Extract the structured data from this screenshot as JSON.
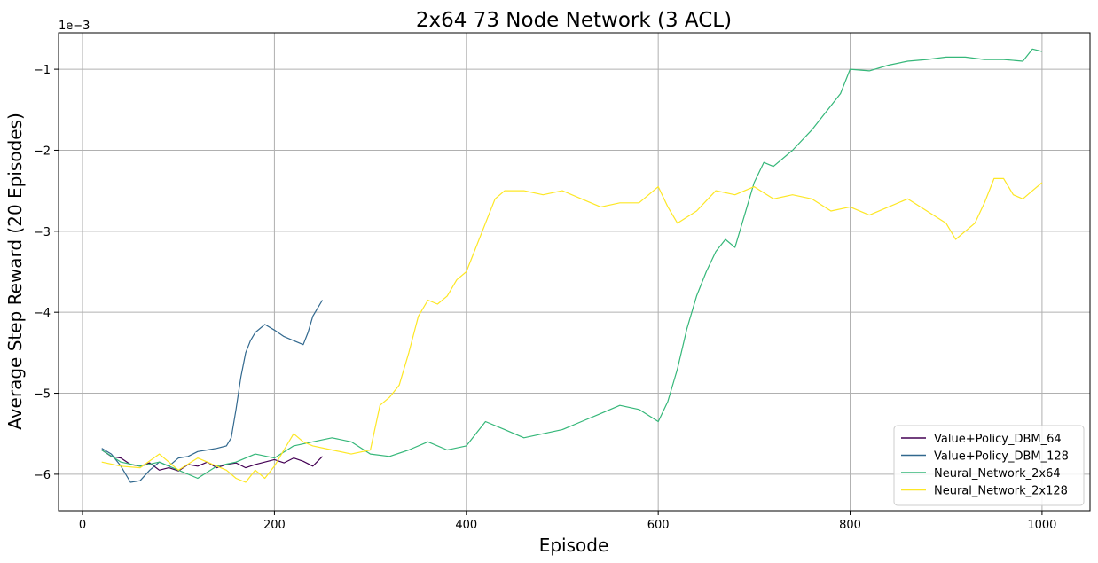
{
  "chart_data": {
    "type": "line",
    "title": "2x64 73 Node Network (3 ACL)",
    "xlabel": "Episode",
    "ylabel": "Average Step Reward (20 Episodes)",
    "y_scale_label": "1e−3",
    "xlim": [
      -25,
      1050
    ],
    "ylim": [
      -6.45,
      -0.55
    ],
    "xticks": [
      0,
      200,
      400,
      600,
      800,
      1000
    ],
    "yticks": [
      -6,
      -5,
      -4,
      -3,
      -2,
      -1
    ],
    "xtick_labels": [
      "0",
      "200",
      "400",
      "600",
      "800",
      "1000"
    ],
    "ytick_labels": [
      "−6",
      "−5",
      "−4",
      "−3",
      "−2",
      "−1"
    ],
    "grid": true,
    "legend_position": "lower-right",
    "series": [
      {
        "name": "Value+Policy_DBM_64",
        "color": "#440154",
        "points": [
          [
            20,
            -5.7
          ],
          [
            30,
            -5.78
          ],
          [
            40,
            -5.8
          ],
          [
            50,
            -5.88
          ],
          [
            60,
            -5.9
          ],
          [
            70,
            -5.86
          ],
          [
            80,
            -5.95
          ],
          [
            90,
            -5.92
          ],
          [
            100,
            -5.96
          ],
          [
            110,
            -5.88
          ],
          [
            120,
            -5.9
          ],
          [
            130,
            -5.85
          ],
          [
            140,
            -5.92
          ],
          [
            150,
            -5.88
          ],
          [
            160,
            -5.86
          ],
          [
            170,
            -5.92
          ],
          [
            180,
            -5.88
          ],
          [
            190,
            -5.85
          ],
          [
            200,
            -5.82
          ],
          [
            210,
            -5.86
          ],
          [
            220,
            -5.8
          ],
          [
            230,
            -5.84
          ],
          [
            240,
            -5.9
          ],
          [
            250,
            -5.78
          ]
        ]
      },
      {
        "name": "Value+Policy_DBM_128",
        "color": "#31688e",
        "points": [
          [
            20,
            -5.68
          ],
          [
            30,
            -5.75
          ],
          [
            40,
            -5.9
          ],
          [
            50,
            -6.1
          ],
          [
            60,
            -6.08
          ],
          [
            70,
            -5.95
          ],
          [
            80,
            -5.85
          ],
          [
            90,
            -5.9
          ],
          [
            100,
            -5.8
          ],
          [
            110,
            -5.78
          ],
          [
            120,
            -5.72
          ],
          [
            130,
            -5.7
          ],
          [
            140,
            -5.68
          ],
          [
            150,
            -5.65
          ],
          [
            155,
            -5.55
          ],
          [
            160,
            -5.2
          ],
          [
            165,
            -4.8
          ],
          [
            170,
            -4.5
          ],
          [
            175,
            -4.35
          ],
          [
            180,
            -4.25
          ],
          [
            190,
            -4.15
          ],
          [
            200,
            -4.22
          ],
          [
            210,
            -4.3
          ],
          [
            220,
            -4.35
          ],
          [
            230,
            -4.4
          ],
          [
            235,
            -4.25
          ],
          [
            240,
            -4.05
          ],
          [
            245,
            -3.95
          ],
          [
            250,
            -3.85
          ]
        ]
      },
      {
        "name": "Neural_Network_2x64",
        "color": "#35b779",
        "points": [
          [
            20,
            -5.7
          ],
          [
            40,
            -5.85
          ],
          [
            60,
            -5.9
          ],
          [
            80,
            -5.85
          ],
          [
            100,
            -5.95
          ],
          [
            120,
            -6.05
          ],
          [
            140,
            -5.9
          ],
          [
            160,
            -5.85
          ],
          [
            180,
            -5.75
          ],
          [
            200,
            -5.8
          ],
          [
            220,
            -5.65
          ],
          [
            240,
            -5.6
          ],
          [
            260,
            -5.55
          ],
          [
            280,
            -5.6
          ],
          [
            300,
            -5.75
          ],
          [
            320,
            -5.78
          ],
          [
            340,
            -5.7
          ],
          [
            360,
            -5.6
          ],
          [
            380,
            -5.7
          ],
          [
            400,
            -5.65
          ],
          [
            420,
            -5.35
          ],
          [
            440,
            -5.45
          ],
          [
            460,
            -5.55
          ],
          [
            480,
            -5.5
          ],
          [
            500,
            -5.45
          ],
          [
            520,
            -5.35
          ],
          [
            540,
            -5.25
          ],
          [
            560,
            -5.15
          ],
          [
            580,
            -5.2
          ],
          [
            600,
            -5.35
          ],
          [
            610,
            -5.1
          ],
          [
            620,
            -4.7
          ],
          [
            630,
            -4.2
          ],
          [
            640,
            -3.8
          ],
          [
            650,
            -3.5
          ],
          [
            660,
            -3.25
          ],
          [
            670,
            -3.1
          ],
          [
            680,
            -3.2
          ],
          [
            690,
            -2.8
          ],
          [
            700,
            -2.4
          ],
          [
            710,
            -2.15
          ],
          [
            720,
            -2.2
          ],
          [
            740,
            -2.0
          ],
          [
            760,
            -1.75
          ],
          [
            780,
            -1.45
          ],
          [
            790,
            -1.3
          ],
          [
            800,
            -1.0
          ],
          [
            820,
            -1.02
          ],
          [
            840,
            -0.95
          ],
          [
            860,
            -0.9
          ],
          [
            880,
            -0.88
          ],
          [
            900,
            -0.85
          ],
          [
            920,
            -0.85
          ],
          [
            940,
            -0.88
          ],
          [
            960,
            -0.88
          ],
          [
            980,
            -0.9
          ],
          [
            990,
            -0.75
          ],
          [
            1000,
            -0.78
          ]
        ]
      },
      {
        "name": "Neural_Network_2x128",
        "color": "#fde725",
        "points": [
          [
            20,
            -5.85
          ],
          [
            40,
            -5.9
          ],
          [
            60,
            -5.92
          ],
          [
            80,
            -5.75
          ],
          [
            100,
            -5.95
          ],
          [
            120,
            -5.8
          ],
          [
            140,
            -5.9
          ],
          [
            150,
            -5.95
          ],
          [
            160,
            -6.05
          ],
          [
            170,
            -6.1
          ],
          [
            180,
            -5.95
          ],
          [
            190,
            -6.05
          ],
          [
            200,
            -5.9
          ],
          [
            210,
            -5.7
          ],
          [
            220,
            -5.5
          ],
          [
            230,
            -5.6
          ],
          [
            240,
            -5.65
          ],
          [
            260,
            -5.7
          ],
          [
            280,
            -5.75
          ],
          [
            300,
            -5.7
          ],
          [
            310,
            -5.15
          ],
          [
            320,
            -5.05
          ],
          [
            330,
            -4.9
          ],
          [
            340,
            -4.5
          ],
          [
            350,
            -4.05
          ],
          [
            360,
            -3.85
          ],
          [
            370,
            -3.9
          ],
          [
            380,
            -3.8
          ],
          [
            390,
            -3.6
          ],
          [
            400,
            -3.5
          ],
          [
            410,
            -3.2
          ],
          [
            420,
            -2.9
          ],
          [
            430,
            -2.6
          ],
          [
            440,
            -2.5
          ],
          [
            460,
            -2.5
          ],
          [
            480,
            -2.55
          ],
          [
            500,
            -2.5
          ],
          [
            520,
            -2.6
          ],
          [
            540,
            -2.7
          ],
          [
            560,
            -2.65
          ],
          [
            580,
            -2.65
          ],
          [
            600,
            -2.45
          ],
          [
            610,
            -2.7
          ],
          [
            620,
            -2.9
          ],
          [
            640,
            -2.75
          ],
          [
            660,
            -2.5
          ],
          [
            680,
            -2.55
          ],
          [
            700,
            -2.45
          ],
          [
            720,
            -2.6
          ],
          [
            740,
            -2.55
          ],
          [
            760,
            -2.6
          ],
          [
            780,
            -2.75
          ],
          [
            800,
            -2.7
          ],
          [
            820,
            -2.8
          ],
          [
            840,
            -2.7
          ],
          [
            860,
            -2.6
          ],
          [
            880,
            -2.75
          ],
          [
            900,
            -2.9
          ],
          [
            910,
            -3.1
          ],
          [
            920,
            -3.0
          ],
          [
            930,
            -2.9
          ],
          [
            940,
            -2.65
          ],
          [
            950,
            -2.35
          ],
          [
            960,
            -2.35
          ],
          [
            970,
            -2.55
          ],
          [
            980,
            -2.6
          ],
          [
            990,
            -2.5
          ],
          [
            1000,
            -2.4
          ]
        ]
      }
    ]
  }
}
